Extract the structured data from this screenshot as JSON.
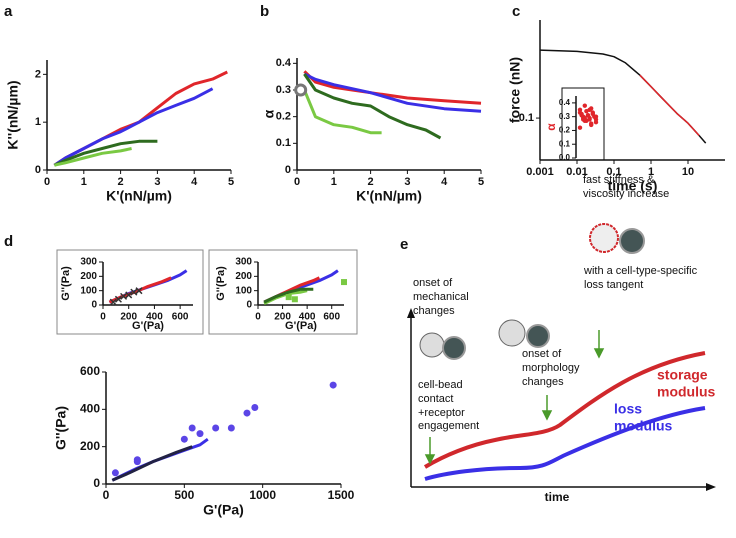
{
  "chart_data": [
    {
      "type": "line",
      "panel": "a",
      "xlabel": "K'(nN/µm)",
      "ylabel": "K''(nN/µm)",
      "xlim": [
        0,
        5
      ],
      "xticks": [
        0,
        1,
        2,
        3,
        4,
        5
      ],
      "ylim": [
        0,
        2.3
      ],
      "yticks": [
        0,
        1,
        2
      ],
      "series": [
        {
          "color": "#e0262b",
          "x": [
            0.2,
            0.5,
            1,
            1.5,
            2,
            2.5,
            3,
            3.5,
            4,
            4.5,
            4.9
          ],
          "values": [
            0.1,
            0.25,
            0.45,
            0.65,
            0.85,
            1.0,
            1.3,
            1.6,
            1.8,
            1.9,
            2.05
          ]
        },
        {
          "color": "#3a2fe6",
          "x": [
            0.2,
            0.5,
            1,
            1.5,
            2,
            2.5,
            3,
            3.5,
            4,
            4.5
          ],
          "values": [
            0.1,
            0.25,
            0.45,
            0.65,
            0.8,
            1.0,
            1.2,
            1.35,
            1.5,
            1.7
          ]
        },
        {
          "color": "#2e6b1f",
          "x": [
            0.2,
            0.5,
            1,
            1.5,
            2,
            2.5,
            3
          ],
          "values": [
            0.1,
            0.2,
            0.35,
            0.45,
            0.55,
            0.6,
            0.6
          ]
        },
        {
          "color": "#7ac943",
          "x": [
            0.2,
            0.5,
            1,
            1.5,
            2,
            2.3
          ],
          "values": [
            0.1,
            0.15,
            0.25,
            0.35,
            0.4,
            0.45
          ]
        }
      ]
    },
    {
      "type": "line",
      "panel": "b",
      "xlabel": "K'(nN/µm)",
      "ylabel": "α",
      "xlim": [
        0,
        5
      ],
      "xticks": [
        0,
        1,
        2,
        3,
        4,
        5
      ],
      "ylim": [
        0,
        0.42
      ],
      "yticks": [
        0,
        0.1,
        0.2,
        0.3,
        0.4
      ],
      "series": [
        {
          "color": "#e0262b",
          "x": [
            0.2,
            0.5,
            1,
            1.5,
            2,
            3,
            4,
            5
          ],
          "values": [
            0.37,
            0.33,
            0.31,
            0.3,
            0.29,
            0.27,
            0.26,
            0.25
          ]
        },
        {
          "color": "#3a2fe6",
          "x": [
            0.2,
            0.5,
            1,
            2,
            3,
            4,
            5
          ],
          "values": [
            0.36,
            0.34,
            0.32,
            0.29,
            0.25,
            0.23,
            0.22
          ]
        },
        {
          "color": "#2e6b1f",
          "x": [
            0.2,
            0.5,
            1,
            1.5,
            2,
            2.5,
            3,
            3.5,
            3.9
          ],
          "values": [
            0.36,
            0.3,
            0.27,
            0.25,
            0.24,
            0.2,
            0.17,
            0.15,
            0.12
          ]
        },
        {
          "color": "#7ac943",
          "x": [
            0.2,
            0.5,
            1,
            1.5,
            2,
            2.3
          ],
          "values": [
            0.3,
            0.2,
            0.17,
            0.16,
            0.14,
            0.14
          ]
        },
        {
          "color": "#777777",
          "marker": "open-circle",
          "x": [
            0.1
          ],
          "values": [
            0.3
          ]
        }
      ]
    },
    {
      "type": "line",
      "panel": "c",
      "xlabel": "time (s)",
      "ylabel": "force (nN)",
      "xscale": "log",
      "yscale": "log",
      "xlim": [
        0.001,
        100
      ],
      "xticks": [
        0.001,
        0.01,
        0.1,
        1,
        10
      ],
      "ylim": [
        0.0425,
        0.74
      ],
      "yticks": [
        0.1
      ],
      "series": [
        {
          "color": "#111111",
          "x": [
            0.001,
            0.01,
            0.05,
            0.1,
            0.2,
            0.5,
            1,
            2,
            5,
            10,
            20,
            30
          ],
          "values": [
            0.4,
            0.39,
            0.37,
            0.35,
            0.31,
            0.24,
            0.19,
            0.15,
            0.11,
            0.09,
            0.07,
            0.06
          ]
        },
        {
          "color": "#e0262b",
          "x": [
            0.5,
            1,
            2,
            5,
            10,
            20
          ],
          "values": [
            0.24,
            0.19,
            0.15,
            0.11,
            0.09,
            0.07
          ]
        }
      ]
    },
    {
      "type": "strip",
      "ylabel": "α",
      "color": "#e0262b",
      "ylim": [
        0,
        0.45
      ],
      "yticks": [
        {
          "value": 0,
          "label": "0.0"
        },
        0.1,
        0.2,
        0.3,
        0.4
      ],
      "values": [
        0.22,
        0.25,
        0.27,
        0.28,
        0.29,
        0.3,
        0.3,
        0.31,
        0.32,
        0.33,
        0.34,
        0.35,
        0.36,
        0.38,
        0.26,
        0.28,
        0.29,
        0.3,
        0.31,
        0.31,
        0.32,
        0.27,
        0.33,
        0.24,
        0.29,
        0.3,
        0.35,
        0.28
      ]
    },
    {
      "type": "line",
      "panel": "d",
      "xlabel": "G'(Pa)",
      "ylabel": "G''(Pa)",
      "xlim": [
        0,
        700
      ],
      "xticks": [
        0,
        200,
        400,
        600
      ],
      "ylim": [
        0,
        300
      ],
      "yticks": [
        0,
        100,
        200,
        300
      ],
      "series": [
        {
          "color": "#3a2fe6",
          "x": [
            50,
            100,
            200,
            300,
            400,
            500,
            600,
            650
          ],
          "values": [
            20,
            40,
            80,
            110,
            140,
            170,
            210,
            240
          ]
        },
        {
          "color": "#e0262b",
          "x": [
            50,
            150,
            250,
            350,
            450,
            530
          ],
          "values": [
            20,
            60,
            90,
            130,
            160,
            190
          ]
        },
        {
          "color": "#333333",
          "marker": "cross",
          "x": [
            80,
            120,
            160,
            200,
            240,
            280
          ],
          "values": [
            20,
            40,
            60,
            70,
            90,
            100
          ]
        }
      ]
    },
    {
      "type": "line",
      "xlabel": "G'(Pa)",
      "ylabel": "G''(Pa)",
      "xlim": [
        0,
        700
      ],
      "xticks": [
        0,
        200,
        400,
        600
      ],
      "ylim": [
        0,
        300
      ],
      "yticks": [
        0,
        100,
        200,
        300
      ],
      "series": [
        {
          "color": "#3a2fe6",
          "x": [
            50,
            100,
            200,
            300,
            400,
            500,
            600,
            650
          ],
          "values": [
            20,
            40,
            80,
            110,
            140,
            170,
            210,
            240
          ]
        },
        {
          "color": "#e0262b",
          "x": [
            50,
            200,
            350,
            450,
            500
          ],
          "values": [
            20,
            80,
            140,
            170,
            190
          ]
        },
        {
          "color": "#7ac943",
          "x": [
            50,
            150,
            250,
            350,
            400
          ],
          "values": [
            10,
            50,
            80,
            90,
            100
          ]
        },
        {
          "color": "#2e6b1f",
          "x": [
            50,
            150,
            250,
            350,
            450
          ],
          "values": [
            20,
            60,
            90,
            110,
            110
          ]
        },
        {
          "color": "#7ac943",
          "marker": "square",
          "x": [
            250,
            300,
            700
          ],
          "values": [
            55,
            40,
            160
          ]
        }
      ]
    },
    {
      "type": "line",
      "xlabel": "G'(Pa)",
      "ylabel": "G''(Pa)",
      "xlim": [
        0,
        1500
      ],
      "xticks": [
        0,
        500,
        1000,
        1500
      ],
      "ylim": [
        0,
        600
      ],
      "yticks": [
        0,
        200,
        400,
        600
      ],
      "series": [
        {
          "color": "#3a2fe6",
          "x": [
            40,
            100,
            200,
            300,
            400,
            500,
            600,
            650
          ],
          "values": [
            20,
            45,
            85,
            120,
            150,
            180,
            210,
            240
          ]
        },
        {
          "color": "#222244",
          "x": [
            40,
            150,
            300,
            450,
            550
          ],
          "values": [
            20,
            60,
            120,
            170,
            200
          ]
        },
        {
          "color": "#5b45e6",
          "marker": "circle",
          "x": [
            60,
            200,
            200,
            500,
            550,
            600,
            700,
            800,
            900,
            950,
            1450
          ],
          "values": [
            60,
            120,
            130,
            240,
            300,
            270,
            300,
            300,
            380,
            410,
            530
          ]
        }
      ]
    }
  ],
  "diagram": {
    "panel": "e",
    "top_note": [
      "fast stiffness &",
      "viscosity increase"
    ],
    "tangent_note": [
      "with a cell-type-specific",
      "loss tangent"
    ],
    "mechanical_note": [
      "onset of",
      "mechanical",
      "changes"
    ],
    "morphology_note": [
      "onset of",
      "morphology",
      "changes"
    ],
    "contact_note": [
      "cell-bead",
      "contact",
      "+receptor",
      "engagement"
    ],
    "storage_label": [
      "storage",
      "modulus"
    ],
    "loss_label": [
      "loss",
      "modulus"
    ],
    "x_label": "time"
  }
}
